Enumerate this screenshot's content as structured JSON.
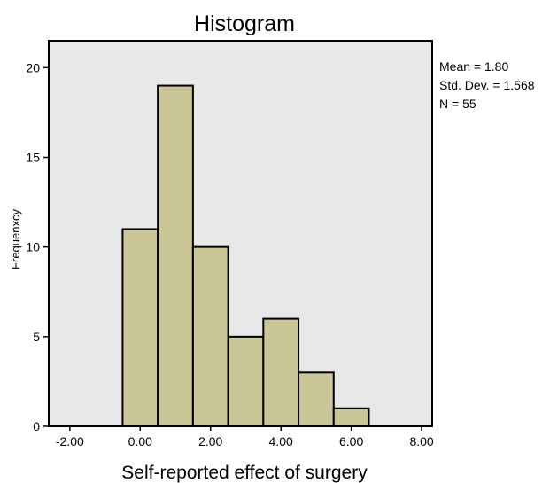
{
  "chart_data": {
    "type": "bar",
    "title": "Histogram",
    "xlabel": "Self-reported effect of surgery",
    "ylabel": "Frequenxcy",
    "x_ticks": [
      "-2.00",
      "0.00",
      "2.00",
      "4.00",
      "6.00",
      "8.00"
    ],
    "y_ticks": [
      "0",
      "5",
      "10",
      "15",
      "20"
    ],
    "xlim": [
      -2.6,
      8.3
    ],
    "ylim": [
      0,
      21.5
    ],
    "bin_width": 1,
    "bins": [
      {
        "start": -0.5,
        "end": 0.5,
        "value": 11
      },
      {
        "start": 0.5,
        "end": 1.5,
        "value": 19
      },
      {
        "start": 1.5,
        "end": 2.5,
        "value": 10
      },
      {
        "start": 2.5,
        "end": 3.5,
        "value": 5
      },
      {
        "start": 3.5,
        "end": 4.5,
        "value": 6
      },
      {
        "start": 4.5,
        "end": 5.5,
        "value": 3
      },
      {
        "start": 5.5,
        "end": 6.5,
        "value": 1
      }
    ],
    "stats": {
      "mean": "Mean = 1.80",
      "std": "Std. Dev. = 1.568",
      "n": "N = 55"
    },
    "colors": {
      "bar_fill": "#CBC698",
      "bar_stroke": "#000000",
      "plot_background": "#E8E8E8",
      "frame": "#000000"
    },
    "grid": false,
    "legend": "none"
  }
}
